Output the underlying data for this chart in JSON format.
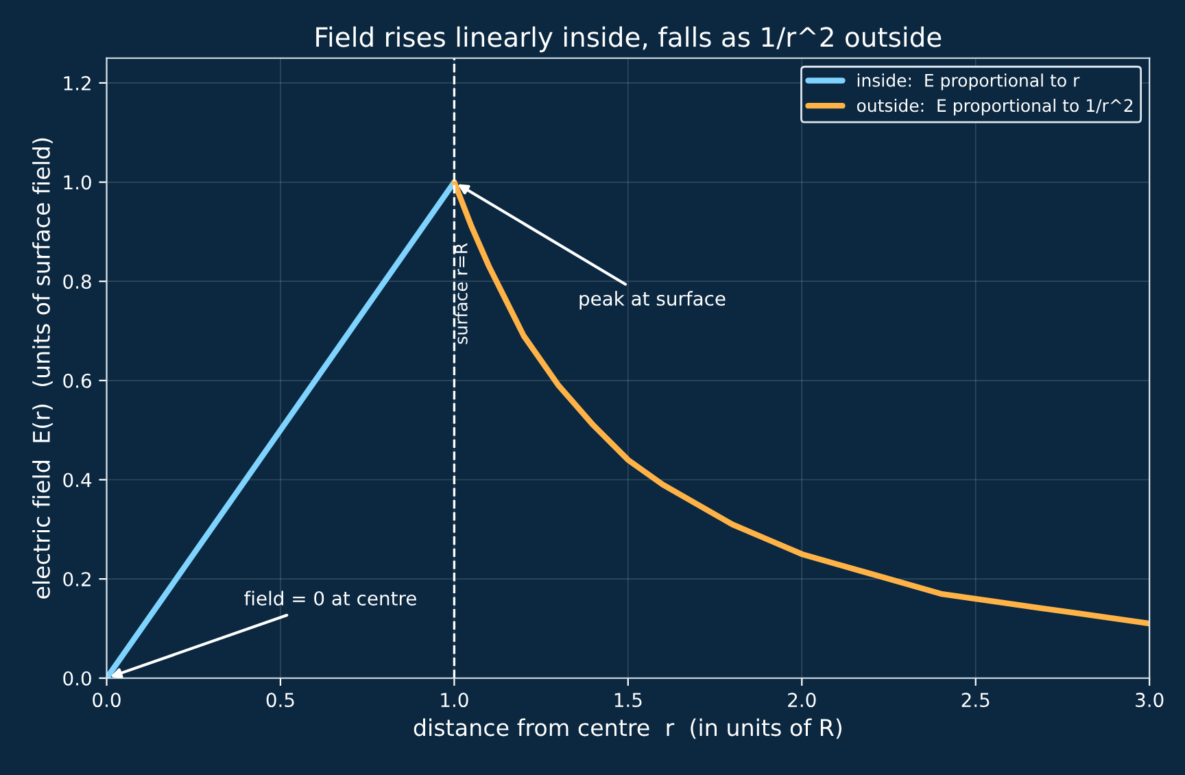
{
  "chart_data": {
    "type": "line",
    "title": "Field rises linearly inside, falls as 1/r^2 outside",
    "xlabel": "distance from centre  r  (in units of R)",
    "ylabel": "electric field  E(r)  (units of surface field)",
    "series": [
      {
        "name": "inside:  E proportional to r",
        "color": "#7fd3ff",
        "x": [
          0,
          1
        ],
        "values": [
          0,
          1
        ]
      },
      {
        "name": "outside:  E proportional to 1/r^2",
        "color": "#ffb347",
        "x": [
          1,
          1.05,
          1.1,
          1.15,
          1.2,
          1.25,
          1.3,
          1.4,
          1.5,
          1.6,
          1.7,
          1.8,
          1.9,
          2,
          2.1,
          2.2,
          2.3,
          2.4,
          2.5,
          2.6,
          2.7,
          2.8,
          2.9,
          3
        ],
        "values": [
          1,
          0.91,
          0.83,
          0.76,
          0.69,
          0.64,
          0.59,
          0.51,
          0.44,
          0.39,
          0.35,
          0.31,
          0.28,
          0.25,
          0.23,
          0.21,
          0.19,
          0.17,
          0.16,
          0.15,
          0.14,
          0.13,
          0.12,
          0.11
        ]
      }
    ],
    "xlim": [
      0,
      3
    ],
    "xticks": [
      {
        "value": 0,
        "label": "0.0"
      },
      0.5,
      {
        "value": 1,
        "label": "1.0"
      },
      1.5,
      {
        "value": 2,
        "label": "2.0"
      },
      2.5,
      {
        "value": 3,
        "label": "3.0"
      }
    ],
    "ylim": [
      0,
      1.25
    ],
    "yticks": [
      {
        "value": 0,
        "label": "0.0"
      },
      0.2,
      0.4,
      0.6,
      0.8,
      {
        "value": 1,
        "label": "1.0"
      },
      1.2
    ],
    "ref_lines": [
      {
        "axis": "x",
        "value": 1,
        "label": "surface r=R",
        "color": "#ffffff",
        "line_style": "dashed"
      }
    ],
    "annotations": [
      {
        "text": "peak at surface",
        "x": 1,
        "y": 1
      },
      {
        "text": "field = 0 at centre",
        "x": 0,
        "y": 0
      }
    ],
    "grid": true,
    "legend": "top right",
    "marker": "none",
    "line_style": "solid"
  }
}
